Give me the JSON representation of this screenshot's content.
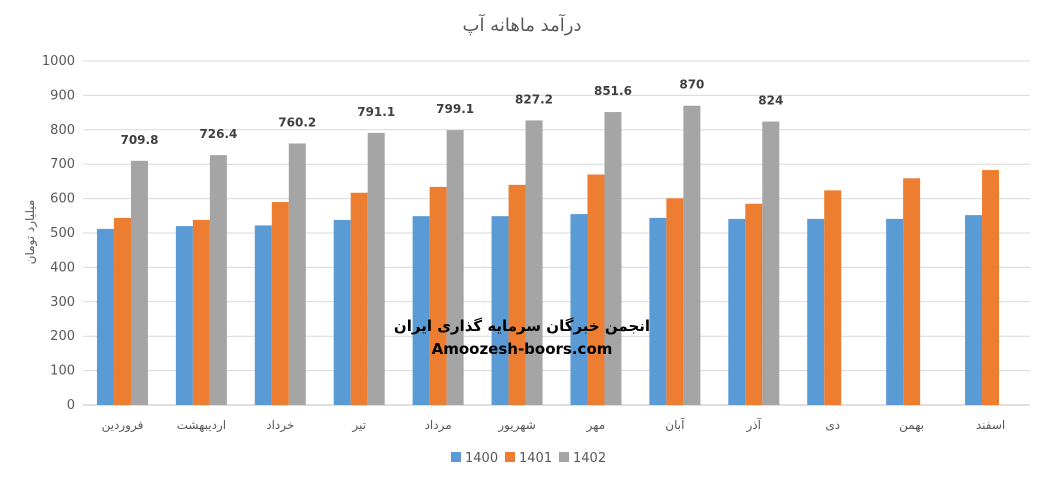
{
  "colors": {
    "s1400": "#5b9bd5",
    "s1401": "#ed7d31",
    "s1402": "#a5a5a5"
  },
  "watermark": {
    "line1": "انجمن خبرگان سرمایه گذاری ایران",
    "line2": "Amoozesh-boors.com"
  },
  "chart_data": {
    "type": "bar",
    "title": "درآمد ماهانه آپ",
    "xlabel": "",
    "ylabel": "میلیارد تومان",
    "ylim": [
      0,
      1000
    ],
    "yticks": [
      0,
      100,
      200,
      300,
      400,
      500,
      600,
      700,
      800,
      900,
      1000
    ],
    "grid": true,
    "legend_position": "bottom",
    "categories": [
      "فروردین",
      "اردیبهشت",
      "خرداد",
      "تیر",
      "مرداد",
      "شهریور",
      "مهر",
      "آبان",
      "آذر",
      "دی",
      "بهمن",
      "اسفند"
    ],
    "series": [
      {
        "name": "1400",
        "color": "#5b9bd5",
        "values": [
          512,
          520,
          522,
          538,
          549,
          549,
          555,
          544,
          541,
          541,
          541,
          552
        ]
      },
      {
        "name": "1401",
        "color": "#ed7d31",
        "values": [
          544,
          538,
          590,
          617,
          634,
          640,
          670,
          601,
          585,
          624,
          659,
          683
        ]
      },
      {
        "name": "1402",
        "color": "#a5a5a5",
        "values": [
          709.8,
          726.4,
          760.2,
          791.1,
          799.1,
          827.2,
          851.6,
          870,
          824,
          null,
          null,
          null
        ],
        "data_labels": [
          "709.8",
          "726.4",
          "760.2",
          "791.1",
          "799.1",
          "827.2",
          "851.6",
          "870",
          "824"
        ]
      }
    ]
  }
}
